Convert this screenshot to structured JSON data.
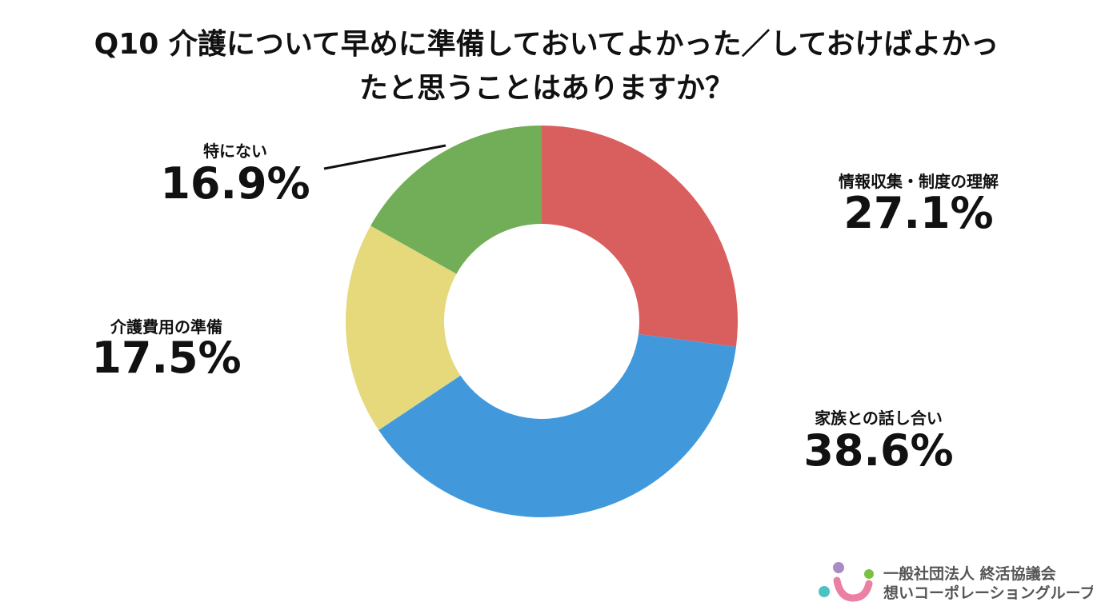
{
  "chart_data": {
    "type": "donut",
    "title": "Q10 介護について早めに準備しておいてよかった／しておけばよかったと思うことはありますか？",
    "categories": [
      "情報収集・制度の理解",
      "家族との話し合い",
      "介護費用の準備",
      "特にない"
    ],
    "values": [
      27.1,
      38.6,
      17.5,
      16.9
    ],
    "value_labels": [
      "27.1%",
      "38.6%",
      "17.5%",
      "16.9%"
    ],
    "colors": [
      "#d95f5e",
      "#4199dc",
      "#e5d97c",
      "#72ae57"
    ]
  },
  "logo": {
    "line1": "一般社団法人 終活協議会",
    "line2": "想いコーポレーショングループ"
  }
}
